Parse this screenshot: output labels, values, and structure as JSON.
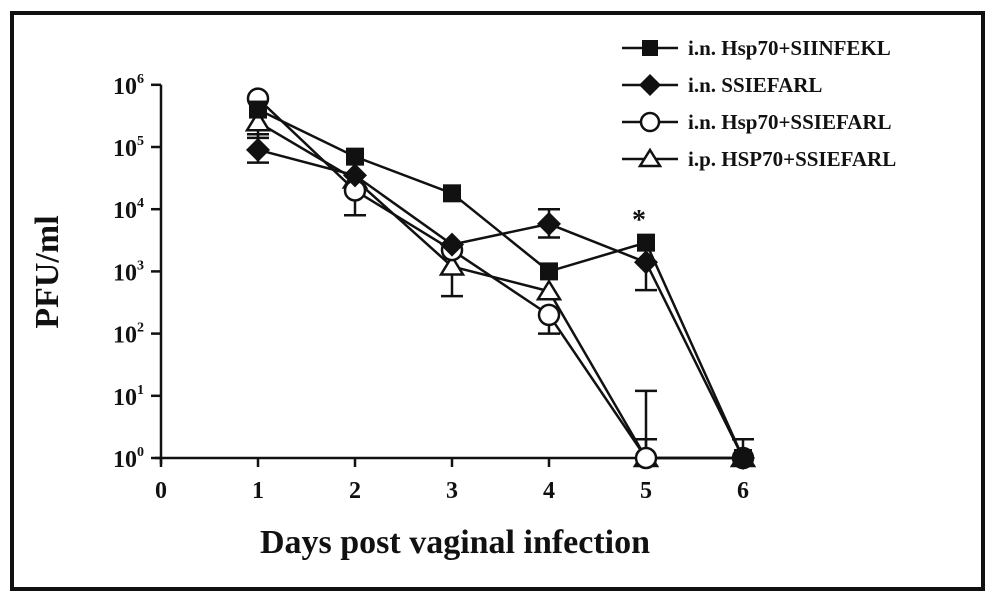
{
  "chart_data": {
    "type": "line",
    "title": "",
    "xlabel": "Days post vaginal infection",
    "ylabel": "PFU/ml",
    "yscale": "log",
    "xlim": [
      0,
      6
    ],
    "ylim": [
      1,
      1000000
    ],
    "x_ticks": [
      "0",
      "1",
      "2",
      "3",
      "4",
      "5",
      "6"
    ],
    "y_ticks": [
      {
        "base": "10",
        "exp": "0"
      },
      {
        "base": "10",
        "exp": "1"
      },
      {
        "base": "10",
        "exp": "2"
      },
      {
        "base": "10",
        "exp": "3"
      },
      {
        "base": "10",
        "exp": "4"
      },
      {
        "base": "10",
        "exp": "5"
      },
      {
        "base": "10",
        "exp": "6"
      }
    ],
    "x": [
      1,
      2,
      3,
      4,
      5,
      6
    ],
    "series": [
      {
        "name": "i.n. Hsp70+SIINFEKL",
        "marker": "filled-square",
        "values": [
          400000,
          70000,
          18000,
          1000,
          2900,
          1
        ]
      },
      {
        "name": "i.n. SSIEFARL",
        "marker": "filled-diamond",
        "values": [
          90000,
          35000,
          2700,
          5800,
          1400,
          1
        ],
        "error_low": [
          56000,
          null,
          null,
          3500,
          500,
          null
        ],
        "error_high": [
          160000,
          null,
          null,
          10000,
          null,
          2
        ]
      },
      {
        "name": "i.n. Hsp70+SSIEFARL",
        "marker": "open-circle",
        "values": [
          600000,
          20000,
          2200,
          200,
          1,
          1
        ],
        "error_low": [
          null,
          8000,
          null,
          100,
          null,
          null
        ],
        "error_high": [
          null,
          null,
          null,
          null,
          2,
          null
        ]
      },
      {
        "name": "i.p. HSP70+SSIEFARL",
        "marker": "open-triangle",
        "values": [
          250000,
          30000,
          1200,
          480,
          1,
          1
        ],
        "error_low": [
          140000,
          null,
          400,
          null,
          null,
          null
        ],
        "error_high": [
          null,
          null,
          null,
          null,
          12,
          null
        ]
      }
    ],
    "annotations": [
      {
        "text": "*",
        "x": 5,
        "position": "above"
      }
    ],
    "legend_position": "top-right",
    "grid": false
  },
  "legend": {
    "items": [
      {
        "label": "i.n. Hsp70+SIINFEKL"
      },
      {
        "label": "i.n. SSIEFARL"
      },
      {
        "label": "i.n. Hsp70+SSIEFARL"
      },
      {
        "label": "i.p. HSP70+SSIEFARL"
      }
    ]
  },
  "annotation_star": "*"
}
